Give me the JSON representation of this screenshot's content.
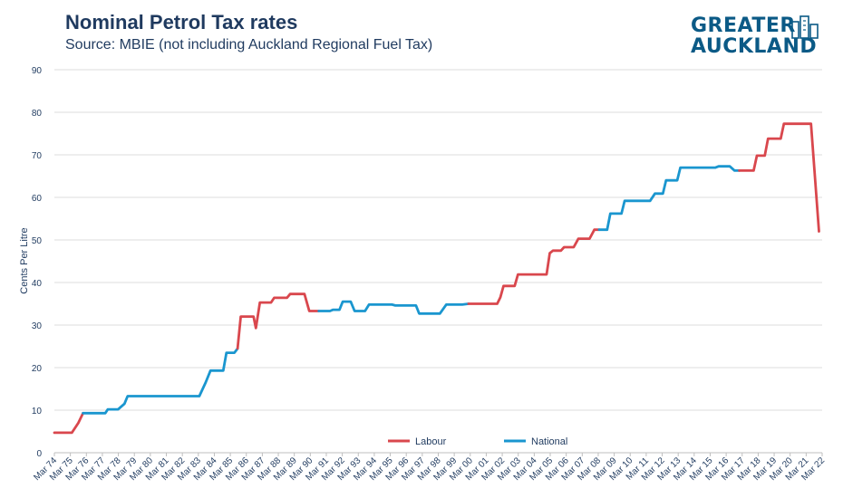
{
  "title": "Nominal Petrol Tax rates",
  "subtitle": "Source: MBIE (not including Auckland Regional Fuel Tax)",
  "logo": {
    "line1": "GREATER",
    "line2": "AUCKLAND"
  },
  "colors": {
    "labour": "#d9474d",
    "national": "#1a96cf",
    "text": "#1f3a5f",
    "grid": "#dcdcdc"
  },
  "chart_data": {
    "type": "line",
    "title": "Nominal Petrol Tax rates",
    "subtitle": "Source: MBIE (not including Auckland Regional Fuel Tax)",
    "ylabel": "Cents Per Litre",
    "xlabel": "",
    "ylim": [
      0,
      90
    ],
    "yticks": [
      0,
      10,
      20,
      30,
      40,
      50,
      60,
      70,
      80,
      90
    ],
    "grid": "horizontal",
    "legend_position": "bottom-center",
    "x_range": [
      1974,
      2022.2
    ],
    "x_tick_labels": [
      "Mar 74",
      "Mar 75",
      "Mar 76",
      "Mar 77",
      "Mar 78",
      "Mar 79",
      "Mar 80",
      "Mar 81",
      "Mar 82",
      "Mar 83",
      "Mar 84",
      "Mar 85",
      "Mar 86",
      "Mar 87",
      "Mar 88",
      "Mar 89",
      "Mar 90",
      "Mar 91",
      "Mar 92",
      "Mar 93",
      "Mar 94",
      "Mar 95",
      "Mar 96",
      "Mar 97",
      "Mar 98",
      "Mar 99",
      "Mar 00",
      "Mar 01",
      "Mar 02",
      "Mar 03",
      "Mar 04",
      "Mar 05",
      "Mar 06",
      "Mar 07",
      "Mar 08",
      "Mar 09",
      "Mar 10",
      "Mar 11",
      "Mar 12",
      "Mar 13",
      "Mar 14",
      "Mar 15",
      "Mar 16",
      "Mar 17",
      "Mar 18",
      "Mar 19",
      "Mar 20",
      "Mar 21",
      "Mar 22"
    ],
    "series": [
      {
        "name": "Labour",
        "color": "#d9474d",
        "points": [
          [
            1974.0,
            4.7
          ],
          [
            1975.1,
            4.7
          ],
          [
            1975.5,
            7.0
          ],
          [
            1975.8,
            9.3
          ]
        ]
      },
      {
        "name": "National",
        "color": "#1a96cf",
        "points": [
          [
            1975.8,
            9.3
          ],
          [
            1977.2,
            9.3
          ],
          [
            1977.35,
            10.2
          ],
          [
            1978.0,
            10.2
          ],
          [
            1978.4,
            11.5
          ],
          [
            1978.6,
            13.3
          ],
          [
            1983.1,
            13.3
          ],
          [
            1983.5,
            16.5
          ],
          [
            1983.8,
            19.3
          ],
          [
            1984.6,
            19.3
          ],
          [
            1984.8,
            23.5
          ],
          [
            1985.3,
            23.5
          ],
          [
            1985.5,
            24.5
          ]
        ]
      },
      {
        "name": "Labour",
        "color": "#d9474d",
        "points": [
          [
            1985.5,
            24.5
          ],
          [
            1985.7,
            32.0
          ],
          [
            1986.5,
            32.0
          ],
          [
            1986.65,
            29.3
          ],
          [
            1986.9,
            35.3
          ],
          [
            1987.6,
            35.3
          ],
          [
            1987.8,
            36.4
          ],
          [
            1988.6,
            36.4
          ],
          [
            1988.8,
            37.3
          ],
          [
            1989.7,
            37.3
          ],
          [
            1990.0,
            33.3
          ],
          [
            1990.6,
            33.3
          ]
        ]
      },
      {
        "name": "National",
        "color": "#1a96cf",
        "points": [
          [
            1990.6,
            33.3
          ],
          [
            1991.3,
            33.3
          ],
          [
            1991.5,
            33.6
          ],
          [
            1991.9,
            33.6
          ],
          [
            1992.1,
            35.5
          ],
          [
            1992.6,
            35.5
          ],
          [
            1992.85,
            33.3
          ],
          [
            1993.5,
            33.3
          ],
          [
            1993.75,
            34.8
          ],
          [
            1995.2,
            34.8
          ],
          [
            1995.4,
            34.6
          ],
          [
            1996.7,
            34.6
          ],
          [
            1996.9,
            32.7
          ],
          [
            1998.2,
            32.7
          ],
          [
            1998.6,
            34.8
          ],
          [
            1999.6,
            34.8
          ],
          [
            2000.0,
            35.0
          ]
        ]
      },
      {
        "name": "Labour",
        "color": "#d9474d",
        "points": [
          [
            2000.0,
            35.0
          ],
          [
            2001.8,
            35.0
          ],
          [
            2002.0,
            36.5
          ],
          [
            2002.2,
            39.2
          ],
          [
            2002.9,
            39.2
          ],
          [
            2003.1,
            41.9
          ],
          [
            2004.9,
            41.9
          ],
          [
            2005.1,
            46.9
          ],
          [
            2005.3,
            47.5
          ],
          [
            2005.8,
            47.5
          ],
          [
            2006.0,
            48.3
          ],
          [
            2006.6,
            48.3
          ],
          [
            2006.9,
            50.3
          ],
          [
            2007.6,
            50.3
          ],
          [
            2007.9,
            52.4
          ],
          [
            2008.2,
            52.4
          ]
        ]
      },
      {
        "name": "National",
        "color": "#1a96cf",
        "points": [
          [
            2008.2,
            52.4
          ],
          [
            2008.7,
            52.4
          ],
          [
            2008.9,
            56.2
          ],
          [
            2009.6,
            56.2
          ],
          [
            2009.8,
            59.2
          ],
          [
            2011.4,
            59.2
          ],
          [
            2011.7,
            60.9
          ],
          [
            2012.2,
            60.9
          ],
          [
            2012.4,
            64.0
          ],
          [
            2013.1,
            64.0
          ],
          [
            2013.3,
            67.0
          ],
          [
            2015.5,
            67.0
          ],
          [
            2015.7,
            67.3
          ],
          [
            2016.4,
            67.3
          ],
          [
            2016.7,
            66.3
          ],
          [
            2017.0,
            66.3
          ]
        ]
      },
      {
        "name": "Labour",
        "color": "#d9474d",
        "points": [
          [
            2017.0,
            66.3
          ],
          [
            2017.9,
            66.3
          ],
          [
            2018.1,
            69.8
          ],
          [
            2018.6,
            69.8
          ],
          [
            2018.8,
            73.8
          ],
          [
            2019.6,
            73.8
          ],
          [
            2019.8,
            77.3
          ],
          [
            2021.5,
            77.3
          ],
          [
            2022.0,
            52.0
          ]
        ]
      }
    ],
    "legend": [
      {
        "name": "Labour",
        "color": "#d9474d"
      },
      {
        "name": "National",
        "color": "#1a96cf"
      }
    ]
  }
}
